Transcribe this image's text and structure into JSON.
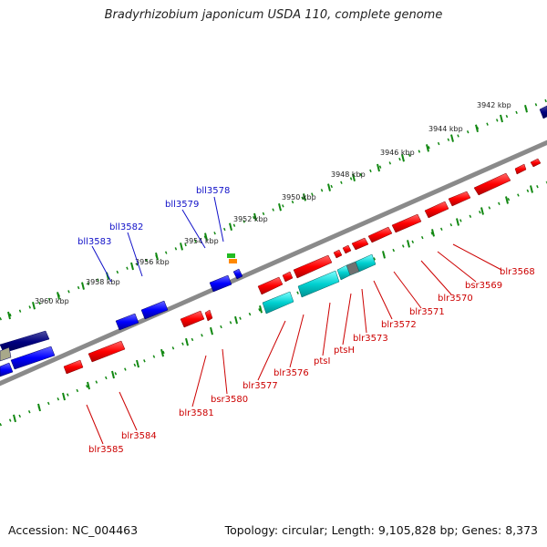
{
  "title": "Bradyrhizobium japonicum USDA 110, complete genome",
  "footer": {
    "accession": "Accession: NC_004463",
    "summary": "Topology: circular; Length: 9,105,828 bp; Genes: 8,373"
  },
  "ruler_labels": [
    "3942 kbp",
    "3944 kbp",
    "3946 kbp",
    "3948 kbp",
    "3950 kbp",
    "3952 kbp",
    "3954 kbp",
    "3956 kbp",
    "3958 kbp",
    "3960 kbp"
  ],
  "gene_labels_top": [
    "bll3578",
    "bll3579",
    "bll3582",
    "bll3583"
  ],
  "gene_labels_bottom": [
    "blr3568",
    "bsr3569",
    "blr3570",
    "blr3571",
    "blr3572",
    "blr3573",
    "ptsH",
    "ptsI",
    "blr3576",
    "blr3577",
    "bsr3580",
    "blr3581",
    "blr3584",
    "blr3585"
  ],
  "colors": {
    "forward_gene": "#ff0000",
    "reverse_gene": "#0000ff",
    "pts_gene": "#00cccc",
    "backbone": "#808080",
    "ticks": "#118811",
    "label_blue": "#1010c8",
    "label_red": "#cc0000"
  }
}
